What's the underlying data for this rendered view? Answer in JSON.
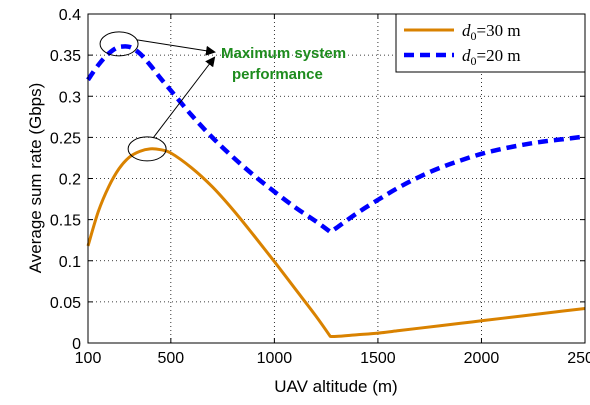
{
  "chart_data": {
    "type": "line",
    "title": "",
    "xlabel": "UAV altitude (m)",
    "ylabel": "Average sum rate (Gbps)",
    "xlim": [
      100,
      2500
    ],
    "ylim": [
      0,
      0.4
    ],
    "xticks": [
      100,
      500,
      1000,
      1500,
      2000,
      2500
    ],
    "yticks": [
      0,
      0.05,
      0.1,
      0.15,
      0.2,
      0.25,
      0.3,
      0.35,
      0.4
    ],
    "xtick_labels": [
      "100",
      "500",
      "1000",
      "1500",
      "2000",
      "2500"
    ],
    "ytick_labels": [
      "0",
      "0.05",
      "0.1",
      "0.15",
      "0.2",
      "0.25",
      "0.3",
      "0.35",
      "0.4"
    ],
    "grid": true,
    "legend_position": "top-right",
    "series": [
      {
        "name": "d0=30 m",
        "legend_main": "d",
        "legend_sub": "0",
        "legend_rest": "=30 m",
        "color": "#D98200",
        "style": "solid",
        "x": [
          100,
          150,
          200,
          250,
          300,
          350,
          400,
          450,
          500,
          600,
          700,
          800,
          900,
          1000,
          1100,
          1200,
          1270,
          1300,
          1400,
          1500,
          1600,
          1700,
          1800,
          1900,
          2000,
          2100,
          2200,
          2300,
          2400,
          2500
        ],
        "y": [
          0.118,
          0.16,
          0.19,
          0.212,
          0.226,
          0.233,
          0.236,
          0.235,
          0.231,
          0.213,
          0.19,
          0.162,
          0.131,
          0.099,
          0.066,
          0.033,
          0.008,
          0.008,
          0.01,
          0.012,
          0.015,
          0.018,
          0.021,
          0.024,
          0.027,
          0.03,
          0.033,
          0.036,
          0.039,
          0.042
        ]
      },
      {
        "name": "d0=20 m",
        "legend_main": "d",
        "legend_sub": "0",
        "legend_rest": "=20 m",
        "color": "#0000FF",
        "style": "dashed",
        "x": [
          100,
          150,
          200,
          250,
          300,
          350,
          400,
          450,
          500,
          600,
          700,
          800,
          900,
          1000,
          1100,
          1200,
          1270,
          1300,
          1400,
          1500,
          1600,
          1700,
          1800,
          1900,
          2000,
          2100,
          2200,
          2300,
          2400,
          2500
        ],
        "y": [
          0.32,
          0.338,
          0.352,
          0.36,
          0.36,
          0.352,
          0.338,
          0.322,
          0.307,
          0.277,
          0.25,
          0.226,
          0.204,
          0.184,
          0.165,
          0.148,
          0.135,
          0.14,
          0.158,
          0.174,
          0.189,
          0.202,
          0.213,
          0.222,
          0.23,
          0.236,
          0.241,
          0.245,
          0.248,
          0.251
        ]
      }
    ],
    "annotation": {
      "text_line1": "Maximum system",
      "text_line2": "performance",
      "color": "#1E8C1E",
      "targets": [
        {
          "x": 250,
          "y": 0.36
        },
        {
          "x": 400,
          "y": 0.236
        }
      ]
    }
  }
}
